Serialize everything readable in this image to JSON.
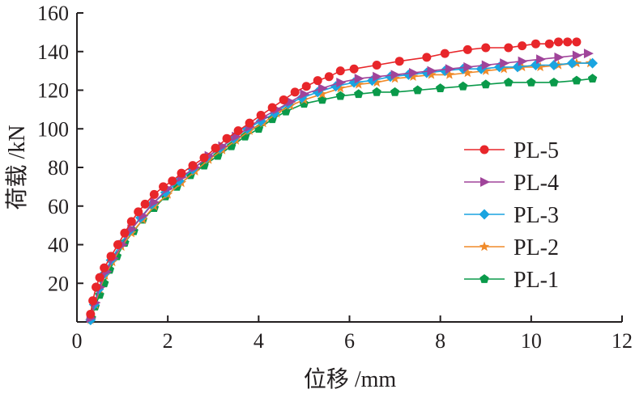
{
  "chart_data": {
    "type": "line",
    "title": "",
    "xlabel": "位移 /mm",
    "ylabel": "荷载 /kN",
    "xlim": [
      0,
      12
    ],
    "ylim": [
      0,
      160
    ],
    "xticks": [
      0,
      2,
      4,
      6,
      8,
      10,
      12
    ],
    "yticks": [
      20,
      40,
      60,
      80,
      100,
      120,
      140,
      160
    ],
    "grid": false,
    "legend_position": "right",
    "series": [
      {
        "name": "PL-5",
        "color": "#e8262a",
        "marker": "circle",
        "x": [
          0.3,
          0.35,
          0.42,
          0.5,
          0.6,
          0.75,
          0.9,
          1.05,
          1.2,
          1.35,
          1.5,
          1.7,
          1.9,
          2.1,
          2.3,
          2.55,
          2.8,
          3.05,
          3.3,
          3.55,
          3.8,
          4.05,
          4.3,
          4.55,
          4.8,
          5.05,
          5.3,
          5.55,
          5.8,
          6.1,
          6.6,
          7.1,
          7.7,
          8.1,
          8.6,
          9.0,
          9.5,
          9.8,
          10.1,
          10.4,
          10.6,
          10.8,
          11.0
        ],
        "y": [
          4,
          11,
          18,
          23,
          28,
          34,
          40,
          46,
          52,
          57,
          61,
          66,
          70,
          73,
          77,
          81,
          85,
          90,
          95,
          99,
          103,
          107,
          111,
          115,
          119,
          122,
          125,
          127,
          130,
          131,
          133,
          135,
          137,
          139,
          141,
          142,
          142,
          143,
          144,
          144,
          145,
          145,
          145
        ]
      },
      {
        "name": "PL-4",
        "color": "#a0449a",
        "marker": "triangle-right",
        "x": [
          0.3,
          0.4,
          0.5,
          0.65,
          0.8,
          1.0,
          1.2,
          1.45,
          1.7,
          2.0,
          2.3,
          2.6,
          2.9,
          3.2,
          3.5,
          3.8,
          4.1,
          4.4,
          4.7,
          5.0,
          5.4,
          5.8,
          6.2,
          6.6,
          7.0,
          7.4,
          7.8,
          8.2,
          8.6,
          9.0,
          9.4,
          9.8,
          10.2,
          10.6,
          11.0,
          11.25
        ],
        "y": [
          2,
          10,
          18,
          26,
          33,
          40,
          48,
          55,
          62,
          69,
          75,
          80,
          86,
          91,
          96,
          101,
          106,
          110,
          114,
          118,
          121,
          124,
          126,
          127,
          128,
          129,
          130,
          131,
          132,
          133,
          134,
          135,
          136,
          137,
          138,
          139
        ]
      },
      {
        "name": "PL-3",
        "color": "#1aa4e0",
        "marker": "diamond",
        "x": [
          0.3,
          0.38,
          0.48,
          0.6,
          0.75,
          0.95,
          1.15,
          1.4,
          1.65,
          1.95,
          2.25,
          2.55,
          2.85,
          3.15,
          3.45,
          3.75,
          4.05,
          4.35,
          4.65,
          4.95,
          5.3,
          5.7,
          6.1,
          6.5,
          6.9,
          7.3,
          7.7,
          8.1,
          8.5,
          8.9,
          9.3,
          9.7,
          10.1,
          10.5,
          10.9,
          11.35
        ],
        "y": [
          1,
          9,
          17,
          25,
          32,
          40,
          47,
          54,
          61,
          67,
          73,
          79,
          85,
          90,
          95,
          100,
          104,
          108,
          113,
          116,
          119,
          122,
          124,
          125,
          127,
          128,
          129,
          130,
          131,
          131,
          132,
          132,
          133,
          133,
          134,
          134
        ]
      },
      {
        "name": "PL-2",
        "color": "#f08a2a",
        "marker": "star",
        "x": [
          0.3,
          0.4,
          0.5,
          0.62,
          0.78,
          0.98,
          1.2,
          1.45,
          1.7,
          2.0,
          2.3,
          2.6,
          2.9,
          3.2,
          3.5,
          3.8,
          4.1,
          4.4,
          4.7,
          5.0,
          5.4,
          5.8,
          6.2,
          6.6,
          7.0,
          7.4,
          7.8,
          8.2,
          8.6,
          9.0,
          9.4,
          9.8,
          10.2,
          10.6,
          11.0,
          11.3
        ],
        "y": [
          1,
          9,
          17,
          24,
          31,
          39,
          46,
          53,
          60,
          66,
          72,
          78,
          84,
          89,
          94,
          99,
          103,
          108,
          112,
          115,
          118,
          121,
          123,
          124,
          126,
          127,
          128,
          128,
          129,
          130,
          131,
          132,
          132,
          133,
          134,
          134
        ]
      },
      {
        "name": "PL-1",
        "color": "#0a9a4a",
        "marker": "pentagon",
        "x": [
          0.32,
          0.4,
          0.5,
          0.6,
          0.72,
          0.88,
          1.05,
          1.25,
          1.45,
          1.7,
          1.95,
          2.2,
          2.5,
          2.8,
          3.1,
          3.4,
          3.7,
          4.0,
          4.3,
          4.6,
          5.0,
          5.4,
          5.8,
          6.2,
          6.6,
          7.0,
          7.5,
          8.0,
          8.5,
          9.0,
          9.5,
          10.0,
          10.5,
          11.0,
          11.35
        ],
        "y": [
          2,
          8,
          14,
          20,
          27,
          34,
          41,
          47,
          53,
          59,
          65,
          70,
          76,
          81,
          86,
          91,
          96,
          100,
          105,
          109,
          113,
          115,
          117,
          118,
          119,
          119,
          120,
          121,
          122,
          123,
          124,
          124,
          124,
          125,
          126
        ]
      }
    ]
  }
}
